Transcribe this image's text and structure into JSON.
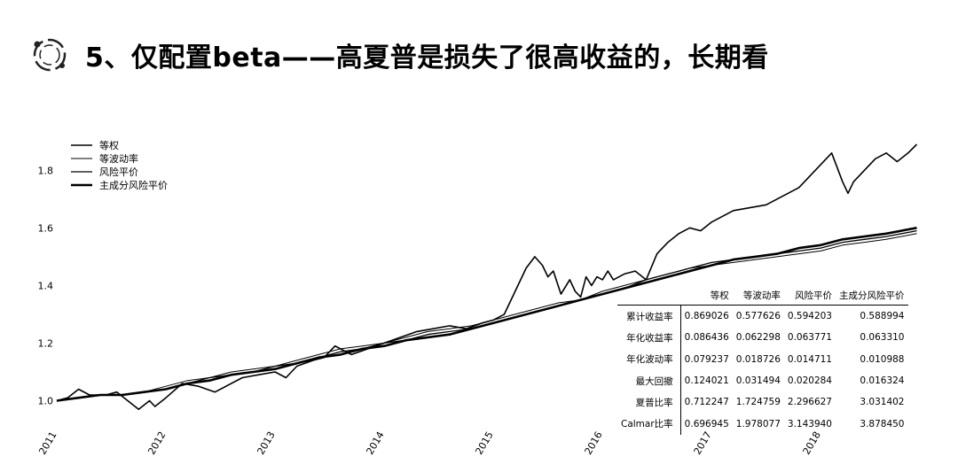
{
  "title": "5、仅配置beta——高夏普是损失了很高收益的，长期看",
  "chart_data": {
    "type": "line",
    "xlabels": [
      "2011",
      "2012",
      "2013",
      "2014",
      "2015",
      "2016",
      "2017",
      "2018"
    ],
    "yticks": [
      "1.0",
      "1.2",
      "1.4",
      "1.6",
      "1.8"
    ],
    "xlim": [
      2011,
      2018.9
    ],
    "ylim": [
      0.94,
      1.93
    ],
    "legend_position": "top-left",
    "series": [
      {
        "name": "等权",
        "x": [
          2011.0,
          2011.1,
          2011.2,
          2011.3,
          2011.45,
          2011.55,
          2011.65,
          2011.75,
          2011.85,
          2011.9,
          2012.0,
          2012.15,
          2012.3,
          2012.45,
          2012.55,
          2012.7,
          2012.85,
          2013.0,
          2013.1,
          2013.2,
          2013.35,
          2013.45,
          2013.55,
          2013.7,
          2013.85,
          2014.0,
          2014.15,
          2014.3,
          2014.45,
          2014.6,
          2014.75,
          2014.9,
          2015.0,
          2015.1,
          2015.2,
          2015.3,
          2015.38,
          2015.45,
          2015.5,
          2015.55,
          2015.62,
          2015.7,
          2015.75,
          2015.8,
          2015.85,
          2015.9,
          2015.95,
          2016.0,
          2016.05,
          2016.1,
          2016.2,
          2016.3,
          2016.4,
          2016.5,
          2016.6,
          2016.7,
          2016.8,
          2016.9,
          2017.0,
          2017.1,
          2017.2,
          2017.35,
          2017.5,
          2017.65,
          2017.8,
          2017.9,
          2018.0,
          2018.1,
          2018.2,
          2018.25,
          2018.3,
          2018.4,
          2018.5,
          2018.6,
          2018.7,
          2018.8,
          2018.88
        ],
        "y": [
          1.0,
          1.01,
          1.04,
          1.02,
          1.02,
          1.03,
          1.0,
          0.97,
          1.0,
          0.98,
          1.01,
          1.06,
          1.05,
          1.03,
          1.05,
          1.08,
          1.09,
          1.1,
          1.08,
          1.12,
          1.14,
          1.15,
          1.19,
          1.16,
          1.18,
          1.2,
          1.22,
          1.24,
          1.25,
          1.26,
          1.25,
          1.27,
          1.28,
          1.3,
          1.38,
          1.46,
          1.5,
          1.47,
          1.43,
          1.45,
          1.37,
          1.42,
          1.38,
          1.36,
          1.43,
          1.4,
          1.43,
          1.42,
          1.45,
          1.42,
          1.44,
          1.45,
          1.42,
          1.51,
          1.55,
          1.58,
          1.6,
          1.59,
          1.62,
          1.64,
          1.66,
          1.67,
          1.68,
          1.71,
          1.74,
          1.78,
          1.82,
          1.86,
          1.76,
          1.72,
          1.76,
          1.8,
          1.84,
          1.86,
          1.83,
          1.86,
          1.89
        ]
      },
      {
        "name": "等波动率",
        "x": [
          2011.0,
          2011.2,
          2011.4,
          2011.6,
          2011.8,
          2012.0,
          2012.2,
          2012.4,
          2012.6,
          2012.8,
          2013.0,
          2013.2,
          2013.4,
          2013.6,
          2013.8,
          2014.0,
          2014.2,
          2014.4,
          2014.6,
          2014.8,
          2015.0,
          2015.2,
          2015.4,
          2015.6,
          2015.8,
          2016.0,
          2016.2,
          2016.4,
          2016.6,
          2016.8,
          2017.0,
          2017.2,
          2017.4,
          2017.6,
          2017.8,
          2018.0,
          2018.2,
          2018.4,
          2018.6,
          2018.88
        ],
        "y": [
          1.0,
          1.01,
          1.02,
          1.02,
          1.03,
          1.05,
          1.07,
          1.08,
          1.1,
          1.11,
          1.12,
          1.14,
          1.16,
          1.18,
          1.19,
          1.2,
          1.22,
          1.24,
          1.25,
          1.26,
          1.28,
          1.3,
          1.32,
          1.34,
          1.35,
          1.38,
          1.4,
          1.42,
          1.44,
          1.46,
          1.47,
          1.48,
          1.49,
          1.5,
          1.51,
          1.52,
          1.54,
          1.55,
          1.56,
          1.58
        ]
      },
      {
        "name": "风险平价",
        "x": [
          2011.0,
          2011.2,
          2011.4,
          2011.6,
          2011.8,
          2012.0,
          2012.2,
          2012.4,
          2012.6,
          2012.8,
          2013.0,
          2013.2,
          2013.4,
          2013.6,
          2013.8,
          2014.0,
          2014.2,
          2014.4,
          2014.6,
          2014.8,
          2015.0,
          2015.2,
          2015.4,
          2015.6,
          2015.8,
          2016.0,
          2016.2,
          2016.4,
          2016.6,
          2016.8,
          2017.0,
          2017.2,
          2017.4,
          2017.6,
          2017.8,
          2018.0,
          2018.2,
          2018.4,
          2018.6,
          2018.88
        ],
        "y": [
          1.0,
          1.01,
          1.02,
          1.02,
          1.03,
          1.04,
          1.06,
          1.08,
          1.09,
          1.1,
          1.12,
          1.13,
          1.15,
          1.17,
          1.18,
          1.2,
          1.21,
          1.23,
          1.24,
          1.25,
          1.27,
          1.29,
          1.31,
          1.33,
          1.35,
          1.37,
          1.39,
          1.42,
          1.44,
          1.46,
          1.48,
          1.49,
          1.5,
          1.51,
          1.52,
          1.53,
          1.55,
          1.56,
          1.57,
          1.59
        ]
      },
      {
        "name": "主成分风险平价",
        "x": [
          2011.0,
          2011.2,
          2011.4,
          2011.6,
          2011.8,
          2012.0,
          2012.2,
          2012.4,
          2012.6,
          2012.8,
          2013.0,
          2013.2,
          2013.4,
          2013.6,
          2013.8,
          2014.0,
          2014.2,
          2014.4,
          2014.6,
          2014.8,
          2015.0,
          2015.2,
          2015.4,
          2015.6,
          2015.8,
          2016.0,
          2016.2,
          2016.4,
          2016.6,
          2016.8,
          2017.0,
          2017.2,
          2017.4,
          2017.6,
          2017.8,
          2018.0,
          2018.2,
          2018.4,
          2018.6,
          2018.88
        ],
        "y": [
          1.0,
          1.01,
          1.02,
          1.02,
          1.03,
          1.04,
          1.06,
          1.07,
          1.09,
          1.1,
          1.11,
          1.13,
          1.15,
          1.16,
          1.18,
          1.19,
          1.21,
          1.22,
          1.23,
          1.25,
          1.27,
          1.29,
          1.31,
          1.33,
          1.35,
          1.37,
          1.39,
          1.41,
          1.43,
          1.45,
          1.47,
          1.49,
          1.5,
          1.51,
          1.53,
          1.54,
          1.56,
          1.57,
          1.58,
          1.6
        ]
      }
    ],
    "table": {
      "columns": [
        "等权",
        "等波动率",
        "风险平价",
        "主成分风险平价"
      ],
      "rows": [
        {
          "label": "累计收益率",
          "values": [
            "0.869026",
            "0.577626",
            "0.594203",
            "0.588994"
          ]
        },
        {
          "label": "年化收益率",
          "values": [
            "0.086436",
            "0.062298",
            "0.063771",
            "0.063310"
          ]
        },
        {
          "label": "年化波动率",
          "values": [
            "0.079237",
            "0.018726",
            "0.014711",
            "0.010988"
          ]
        },
        {
          "label": "最大回撤",
          "values": [
            "0.124021",
            "0.031494",
            "0.020284",
            "0.016324"
          ]
        },
        {
          "label": "夏普比率",
          "values": [
            "0.712247",
            "1.724759",
            "2.296627",
            "3.031402"
          ]
        },
        {
          "label": "Calmar比率",
          "values": [
            "0.696945",
            "1.978077",
            "3.143940",
            "3.878450"
          ]
        }
      ]
    }
  }
}
